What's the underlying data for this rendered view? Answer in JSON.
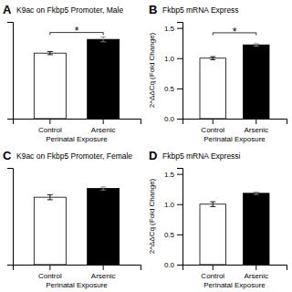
{
  "chart_data": [
    {
      "type": "bar",
      "title": "K9ac on Fkbp5 Promoter, Male",
      "xlabel": "Perinatal Exposure",
      "categories": [
        "Control",
        "Arsenic"
      ],
      "values": [
        1.05,
        1.27
      ],
      "errors": [
        0.025,
        0.04
      ],
      "colors": [
        "white",
        "black"
      ],
      "ylim": [
        0,
        1.55
      ],
      "yticks": [],
      "tick_labels": "x",
      "annotations": [
        {
          "text": "A"
        },
        {
          "text": "*",
          "y": 1.4,
          "bracket_y": 1.38
        }
      ]
    },
    {
      "type": "bar",
      "title": "Fkbp5 mRNA Express",
      "xlabel": "Perinatal Exposure",
      "ylabel": "2^ΔΔCq (Fold Change)",
      "categories": [
        "Control",
        "Arsenic"
      ],
      "values": [
        1.0,
        1.22
      ],
      "errors": [
        0.025,
        0.02
      ],
      "colors": [
        "white",
        "black"
      ],
      "ylim": [
        0,
        1.6
      ],
      "yticks": [
        {
          "value": 0,
          "label": "0.0"
        },
        0.5,
        {
          "value": 1,
          "label": "1.0"
        },
        1.5
      ],
      "annotations": [
        {
          "text": "B"
        },
        {
          "text": "*",
          "y": 1.43,
          "bracket_y": 1.42
        }
      ]
    },
    {
      "type": "bar",
      "title": "K9ac on Fkbp5 Promoter, Female",
      "xlabel": "Perinatal Exposure",
      "categories": [
        "Control",
        "Arsenic"
      ],
      "values": [
        1.08,
        1.22
      ],
      "errors": [
        0.04,
        0.025
      ],
      "colors": [
        "white",
        "black"
      ],
      "ylim": [
        0,
        1.55
      ],
      "yticks": [],
      "tick_labels": "x",
      "annotations": [
        {
          "text": "C"
        }
      ]
    },
    {
      "type": "bar",
      "title": "Fkbp5 mRNA Expressi",
      "xlabel": "Perinatal Exposure",
      "ylabel": "2^ΔΔCq (Fold Change)",
      "categories": [
        "Control",
        "Arsenic"
      ],
      "values": [
        1.0,
        1.18
      ],
      "errors": [
        0.04,
        0.02
      ],
      "colors": [
        "white",
        "black"
      ],
      "ylim": [
        0,
        1.6
      ],
      "yticks": [
        {
          "value": 0,
          "label": "0.0"
        },
        0.5,
        {
          "value": 1,
          "label": "1.0"
        },
        1.5
      ],
      "annotations": [
        {
          "text": "D"
        }
      ]
    }
  ]
}
